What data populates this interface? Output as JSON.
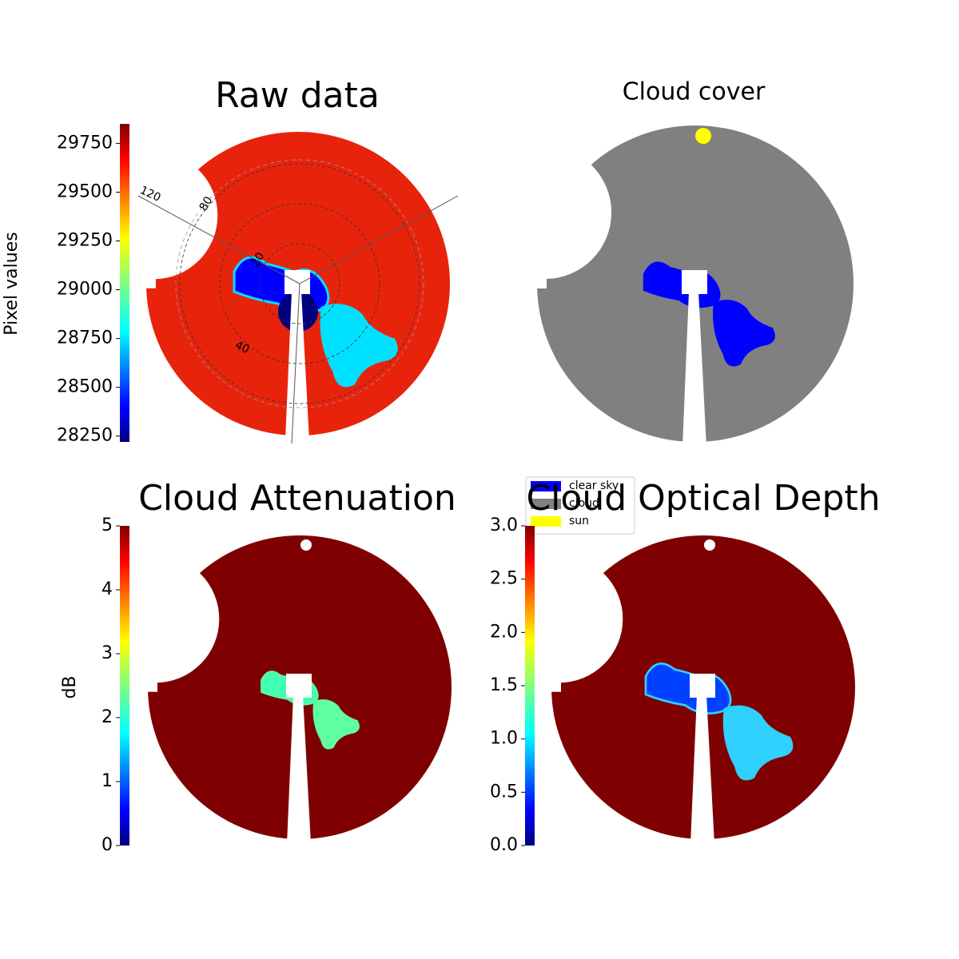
{
  "chart_data": [
    {
      "type": "image",
      "title": "Raw data",
      "ylabel": "Pixel values",
      "ylim": [
        28220,
        29850
      ],
      "yticks": [
        28250,
        28500,
        28750,
        29000,
        29250,
        29500,
        29750
      ],
      "grid_labels": [
        "120",
        "80",
        "20",
        "40"
      ],
      "disk_color": "#e8230c"
    },
    {
      "type": "image",
      "title": "Cloud cover",
      "disk_color": "#808080",
      "legend": [
        {
          "name": "clear sky",
          "color": "#0000ff"
        },
        {
          "name": "cloud",
          "color": "#808080"
        },
        {
          "name": "sun",
          "color": "#ffff00"
        }
      ]
    },
    {
      "type": "image",
      "title": "Cloud Attenuation",
      "ylabel": "dB",
      "ylim": [
        0,
        5
      ],
      "yticks": [
        0,
        1,
        2,
        3,
        4,
        5
      ],
      "disk_color": "#7f0000"
    },
    {
      "type": "image",
      "title": "Cloud Optical Depth",
      "ylim": [
        0,
        3
      ],
      "yticks": [
        {
          "value": 0,
          "label": "0.0"
        },
        0.5,
        {
          "value": 1,
          "label": "1.0"
        },
        1.5,
        {
          "value": 2,
          "label": "2.0"
        },
        2.5,
        {
          "value": 3,
          "label": "3.0"
        }
      ],
      "disk_color": "#7f0000"
    }
  ]
}
